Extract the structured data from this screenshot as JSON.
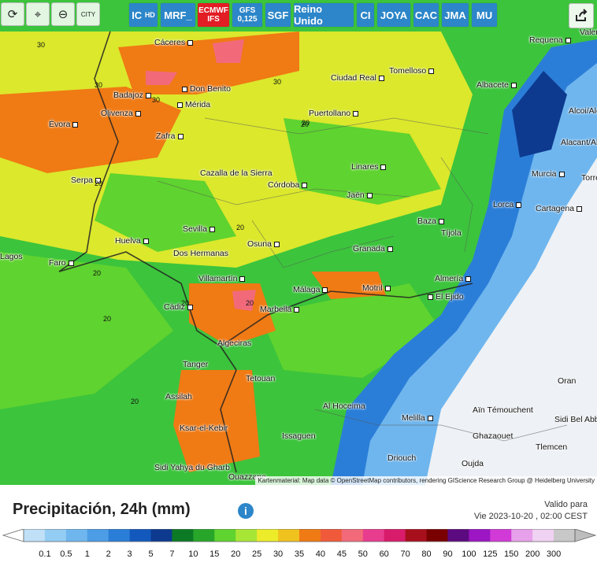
{
  "toolbar": {
    "tools": [
      {
        "name": "refresh-icon",
        "glyph": "⟳"
      },
      {
        "name": "location-icon",
        "glyph": "⌖"
      },
      {
        "name": "zoom-icon",
        "glyph": "⊖"
      },
      {
        "name": "city-toggle",
        "glyph": "CITY"
      }
    ],
    "models": [
      {
        "label": "IC",
        "sub": "HD"
      },
      {
        "label": "MRF_",
        "sub": ""
      },
      {
        "label": "ECMWF",
        "sub": "IFS",
        "active": true
      },
      {
        "label": "GFS",
        "sub": "0,125"
      },
      {
        "label": "SGF",
        "sub": ""
      },
      {
        "label": "Reino Unido",
        "sub": ""
      },
      {
        "label": "CI",
        "sub": ""
      },
      {
        "label": "JOYA",
        "sub": ""
      },
      {
        "label": "CAC",
        "sub": ""
      },
      {
        "label": "JMA",
        "sub": ""
      },
      {
        "label": "MU",
        "sub": ""
      }
    ]
  },
  "cities": [
    "Cáceres",
    "Don Benito",
    "Mérida",
    "Badajoz",
    "Olivenza",
    "Évora",
    "Zafra",
    "Ciudad Real",
    "Tomelloso",
    "Puertollano",
    "Albacete",
    "Requena",
    "Valencia",
    "Alcoi/Alcoy",
    "Alacant/Alicante",
    "Cazalla de la Sierra",
    "Serpa",
    "Córdoba",
    "Linares",
    "Jaén",
    "Murcia",
    "Lorca",
    "Cartagena",
    "Torrevieja",
    "Sevilla",
    "Huelva",
    "Dos Hermanas",
    "Osuna",
    "Granada",
    "Baza",
    "Tíjola",
    "Faro",
    "Lagos",
    "Villamartín",
    "Cádiz",
    "Málaga",
    "Motril",
    "Almería",
    "El Ejido",
    "Marbella",
    "Algeciras",
    "Tanger",
    "Tetouan",
    "Assilah",
    "Ksar-el-Kebir",
    "Al Hoceima",
    "Melilla",
    "Issaguen",
    "Driouch",
    "Oujda",
    "Aïn Témouchent",
    "Ghazaouet",
    "Tlemcen",
    "Oran",
    "Sidi Bel Abbès",
    "Sidi Yahya du Gharb",
    "Ouazzane"
  ],
  "numbers": [
    "30",
    "30",
    "30",
    "30",
    "20",
    "20",
    "20",
    "20",
    "20",
    "20",
    "20",
    "20",
    "20"
  ],
  "attribution": "Kartenmaterial: Map data © OpenStreetMap contributors, rendering GIScience Research Group @ Heidelberg University",
  "legend": {
    "title": "Precipitación, 24h (mm)",
    "info_icon": "i",
    "valid_label": "Valido para",
    "valid_value": "Vie 2023-10-20 , 02:00 CEST",
    "ticks": [
      "0.1",
      "0.5",
      "1",
      "2",
      "3",
      "5",
      "7",
      "10",
      "15",
      "20",
      "25",
      "30",
      "35",
      "40",
      "45",
      "50",
      "60",
      "70",
      "80",
      "90",
      "100",
      "125",
      "150",
      "200",
      "300"
    ],
    "colors": [
      "#bfe0f7",
      "#94cdf3",
      "#6fb6ee",
      "#4c9ce6",
      "#2b7ed8",
      "#1359bd",
      "#0d3a8f",
      "#0c7a25",
      "#27a62a",
      "#5fd32f",
      "#a8e636",
      "#ecec2a",
      "#f0c21e",
      "#f07a14",
      "#f05a3a",
      "#f26a7a",
      "#e83c8e",
      "#d81b6a",
      "#a80f1c",
      "#7a0000",
      "#5c0a80",
      "#9c16c4",
      "#d23ad8",
      "#e7a0ea",
      "#f0d2f2",
      "#c8c8c8"
    ]
  }
}
